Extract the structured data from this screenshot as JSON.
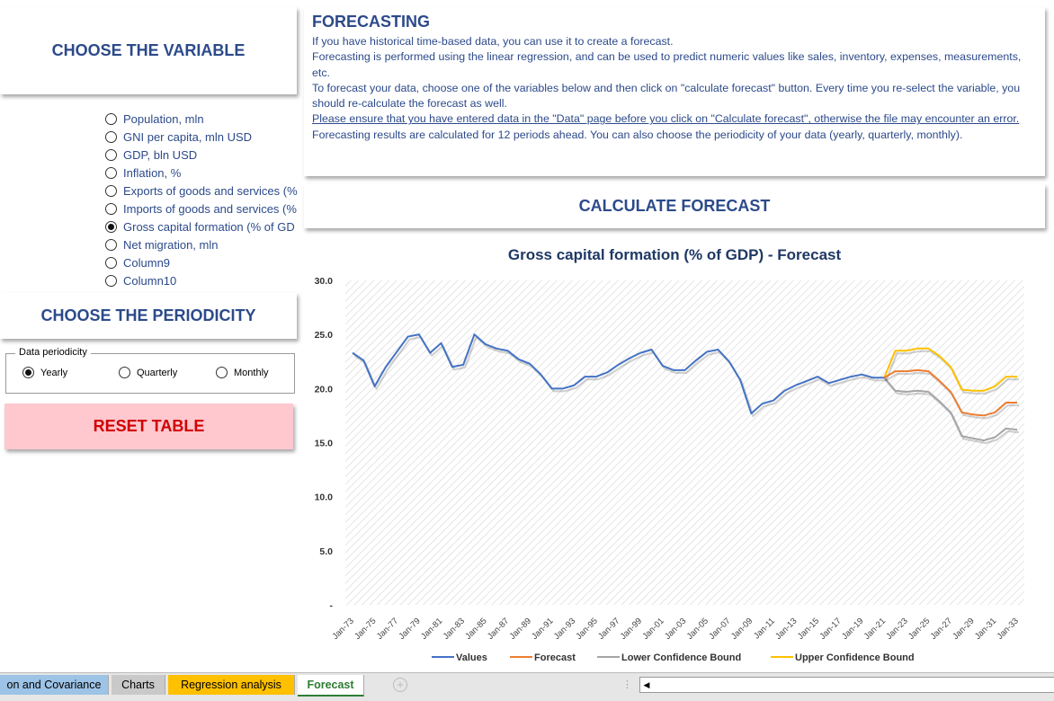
{
  "left": {
    "choose_variable": "CHOOSE THE VARIABLE",
    "variables": [
      {
        "label": "Population, mln",
        "selected": false
      },
      {
        "label": "GNI per capita, mln USD",
        "selected": false
      },
      {
        "label": "GDP, bln USD",
        "selected": false
      },
      {
        "label": "Inflation, %",
        "selected": false
      },
      {
        "label": "Exports of goods and services (%",
        "selected": false
      },
      {
        "label": "Imports of goods and services (%",
        "selected": false
      },
      {
        "label": "Gross capital formation (% of GD",
        "selected": true
      },
      {
        "label": "Net migration, mln",
        "selected": false
      },
      {
        "label": "Column9",
        "selected": false
      },
      {
        "label": "Column10",
        "selected": false
      }
    ],
    "choose_periodicity": "CHOOSE THE PERIODICITY",
    "periodicity_group": "Data periodicity",
    "periodicity_options": [
      "Yearly",
      "Quarterly",
      "Monthly"
    ],
    "periodicity_selected": "Yearly",
    "reset": "RESET TABLE"
  },
  "info": {
    "title": "FORECASTING",
    "line1": "If you have historical time-based data, you can use it to create a forecast.",
    "line2": "Forecasting is performed using the linear regression, and can be used to predict numeric values like sales, inventory, expenses, measurements, etc.",
    "line3": "To forecast your data, choose one of the variables below and then click on \"calculate forecast\" button. Every time you re-select the variable, you should re-calculate the forecast as well.",
    "line4": "Please ensure that you have entered data in the \"Data\" page before you click on \"Calculate forecast\", otherwise the file may encounter an error.",
    "line5": "Forecasting results are calculated for 12 periods ahead. You can also choose the periodicity of your data (yearly, quarterly, monthly)."
  },
  "calc_button": "CALCULATE FORECAST",
  "colors": {
    "values": "#4472c4",
    "forecast": "#ed7d31",
    "lower": "#a5a5a5",
    "upper": "#ffc000",
    "accent": "#2c4a8a"
  },
  "chart_data": {
    "type": "line",
    "title": "Gross capital formation (% of GDP) - Forecast",
    "ylim": [
      0,
      30
    ],
    "y_ticks": [
      "-",
      "5.0",
      "10.0",
      "15.0",
      "20.0",
      "25.0",
      "30.0"
    ],
    "x_tick_labels": [
      "Jan-73",
      "Jan-75",
      "Jan-77",
      "Jan-79",
      "Jan-81",
      "Jan-83",
      "Jan-85",
      "Jan-87",
      "Jan-89",
      "Jan-91",
      "Jan-93",
      "Jan-95",
      "Jan-97",
      "Jan-99",
      "Jan-01",
      "Jan-03",
      "Jan-05",
      "Jan-07",
      "Jan-09",
      "Jan-11",
      "Jan-13",
      "Jan-15",
      "Jan-17",
      "Jan-19",
      "Jan-21",
      "Jan-23",
      "Jan-25",
      "Jan-27",
      "Jan-29",
      "Jan-31",
      "Jan-33"
    ],
    "legend_position": "bottom",
    "series": [
      {
        "name": "Values",
        "start_year": 1973,
        "values": [
          23.3,
          22.6,
          20.2,
          22.0,
          23.4,
          24.8,
          25.0,
          23.3,
          24.2,
          22.0,
          22.2,
          25.0,
          24.1,
          23.7,
          23.5,
          22.7,
          22.3,
          21.3,
          20.0,
          20.0,
          20.3,
          21.1,
          21.1,
          21.5,
          22.2,
          22.8,
          23.3,
          23.6,
          22.1,
          21.7,
          21.7,
          22.6,
          23.4,
          23.6,
          22.5,
          20.8,
          17.7,
          18.6,
          18.9,
          19.8,
          20.3,
          20.7,
          21.1,
          20.5,
          20.8,
          21.1,
          21.3,
          21.0,
          21.0
        ]
      },
      {
        "name": "Forecast",
        "start_year": 2021,
        "values": [
          21.0,
          21.6,
          21.6,
          21.7,
          21.6,
          20.7,
          19.7,
          17.8,
          17.6,
          17.5,
          17.8,
          18.7,
          18.7
        ]
      },
      {
        "name": "Lower Confidence Bound",
        "start_year": 2021,
        "values": [
          21.0,
          19.8,
          19.7,
          19.8,
          19.7,
          18.8,
          17.8,
          15.6,
          15.4,
          15.2,
          15.5,
          16.3,
          16.2
        ]
      },
      {
        "name": "Upper Confidence Bound",
        "start_year": 2021,
        "values": [
          21.0,
          23.5,
          23.5,
          23.7,
          23.7,
          23.0,
          22.0,
          19.9,
          19.8,
          19.8,
          20.2,
          21.1,
          21.1
        ]
      }
    ]
  },
  "tabs": [
    "on and Covariance",
    "Charts",
    "Regression analysis",
    "Forecast"
  ]
}
